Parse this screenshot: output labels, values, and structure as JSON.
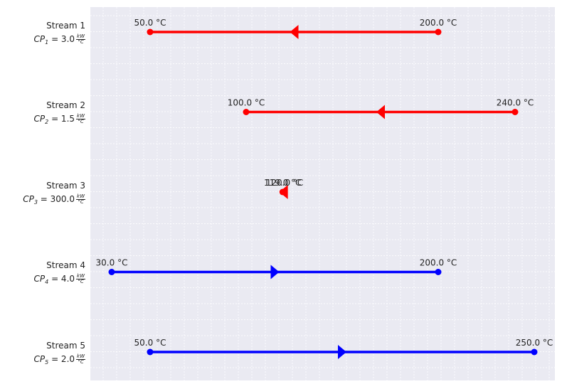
{
  "colors": {
    "hot": "#ff0000",
    "cold": "#0000ff",
    "background": "#eaeaf2",
    "grid": "#ffffff"
  },
  "streams": [
    {
      "name": "Stream 1",
      "cp_symbol": "CP",
      "cp_index": "1",
      "cp_text": "= 3.0",
      "unit_num": "kW",
      "unit_den": "°C"
    },
    {
      "name": "Stream 2",
      "cp_symbol": "CP",
      "cp_index": "2",
      "cp_text": "= 1.5",
      "unit_num": "kW",
      "unit_den": "°C"
    },
    {
      "name": "Stream 3",
      "cp_symbol": "CP",
      "cp_index": "3",
      "cp_text": "= 300.0",
      "unit_num": "kW",
      "unit_den": "°C"
    },
    {
      "name": "Stream 4",
      "cp_symbol": "CP",
      "cp_index": "4",
      "cp_text": "= 4.0",
      "unit_num": "kW",
      "unit_den": "°C"
    },
    {
      "name": "Stream 5",
      "cp_symbol": "CP",
      "cp_index": "5",
      "cp_text": "= 2.0",
      "unit_num": "kW",
      "unit_den": "°C"
    }
  ],
  "chart_data": {
    "type": "line",
    "xlim": [
      20,
      250
    ],
    "grid": true,
    "series": [
      {
        "row": 1,
        "kind": "hot",
        "supply": 200,
        "target": 50,
        "supply_label": "200.0 °C",
        "target_label": "50.0 °C"
      },
      {
        "row": 2,
        "kind": "hot",
        "supply": 240,
        "target": 100,
        "supply_label": "240.0 °C",
        "target_label": "100.0 °C"
      },
      {
        "row": 3,
        "kind": "hot",
        "supply": 120,
        "target": 119,
        "supply_label": "120.0 °C",
        "target_label": "119.0 °C"
      },
      {
        "row": 4,
        "kind": "cold",
        "supply": 30,
        "target": 200,
        "supply_label": "30.0 °C",
        "target_label": "200.0 °C"
      },
      {
        "row": 5,
        "kind": "cold",
        "supply": 50,
        "target": 250,
        "supply_label": "50.0 °C",
        "target_label": "250.0 °C"
      }
    ]
  }
}
